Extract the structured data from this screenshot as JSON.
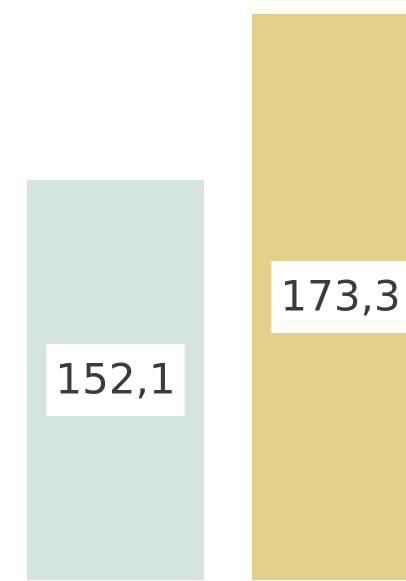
{
  "chart_data": {
    "type": "bar",
    "categories": [
      null,
      null
    ],
    "values": [
      152.1,
      173.3
    ],
    "value_labels": [
      "152,1",
      "173,3"
    ],
    "colors": [
      "#d4e5dc",
      "#e3d08a"
    ],
    "ylim": [
      101,
      173.3
    ]
  }
}
